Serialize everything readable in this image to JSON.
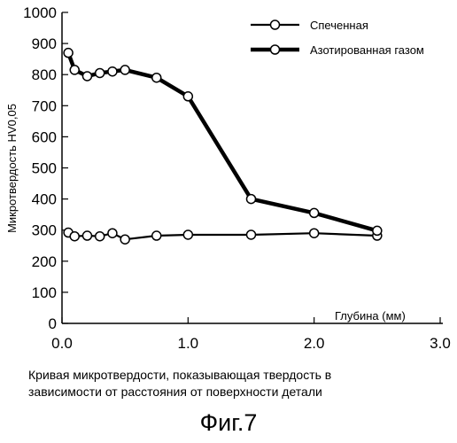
{
  "chart_data": {
    "type": "line",
    "ylabel": "Микротвердость HV0,05",
    "xlabel": "Глубина (мм)",
    "xlim": [
      0.0,
      3.0
    ],
    "ylim": [
      0,
      1000
    ],
    "x_ticks": [
      "0.0",
      "1.0",
      "2.0",
      "3.0"
    ],
    "y_ticks": [
      "0",
      "100",
      "200",
      "300",
      "400",
      "500",
      "600",
      "700",
      "800",
      "900",
      "1000"
    ],
    "grid": false,
    "legend_position": "top-right",
    "series": [
      {
        "name": "Спеченная",
        "style": "thin",
        "x": [
          0.05,
          0.1,
          0.2,
          0.3,
          0.4,
          0.5,
          0.75,
          1.0,
          1.5,
          2.0,
          2.5
        ],
        "y": [
          292,
          280,
          282,
          280,
          290,
          270,
          282,
          285,
          285,
          290,
          282
        ]
      },
      {
        "name": "Азотированная газом",
        "style": "thick",
        "x": [
          0.05,
          0.1,
          0.2,
          0.3,
          0.4,
          0.5,
          0.75,
          1.0,
          1.5,
          2.0,
          2.5
        ],
        "y": [
          870,
          815,
          795,
          805,
          810,
          815,
          790,
          730,
          400,
          355,
          298
        ]
      }
    ]
  },
  "caption": {
    "line1": "Кривая микротвердости, показывающая твердость в",
    "line2": "зависимости от расстояния от поверхности детали"
  },
  "figure_label": "Фиг.7"
}
